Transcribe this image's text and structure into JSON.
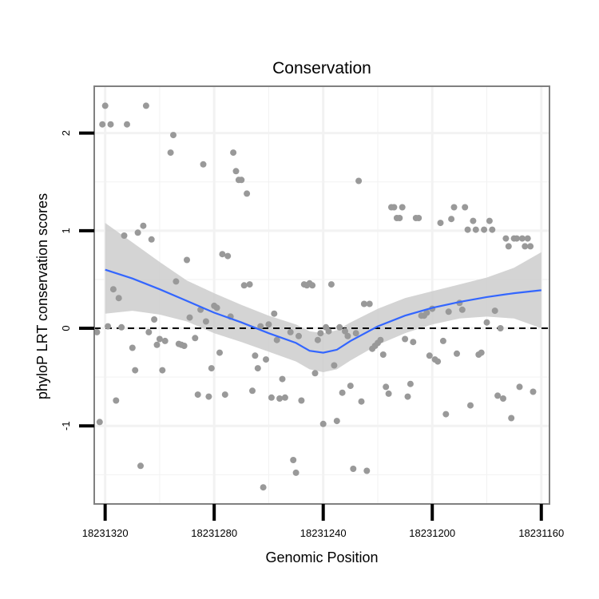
{
  "chart_data": {
    "type": "scatter",
    "title": "Conservation",
    "xlabel": "Genomic Position",
    "ylabel": "phyloP LRT conservation scores",
    "x_reversed": true,
    "xlim": [
      18231324,
      18231157
    ],
    "ylim": [
      -1.8,
      2.48
    ],
    "xticks": [
      18231320,
      18231280,
      18231240,
      18231200,
      18231160
    ],
    "xtick_labels": [
      "18231320",
      "18231280",
      "18231240",
      "18231200",
      "18231160"
    ],
    "yticks": [
      -1,
      0,
      1,
      2
    ],
    "ytick_labels": [
      "-1",
      "0",
      "1",
      "2"
    ],
    "reference_line": {
      "y": 0,
      "style": "dashed",
      "color": "#000000"
    },
    "colors": {
      "points": "#999999",
      "smooth": "#3366ff",
      "ribbon": "#cccccc",
      "grid": "#f2f2f2",
      "panel_border": "#808080"
    },
    "points": [
      [
        18231323,
        -0.04
      ],
      [
        18231322,
        -0.96
      ],
      [
        18231321,
        2.09
      ],
      [
        18231320,
        2.28
      ],
      [
        18231319,
        0.02
      ],
      [
        18231318,
        2.09
      ],
      [
        18231317,
        0.4
      ],
      [
        18231316,
        -0.74
      ],
      [
        18231315,
        0.31
      ],
      [
        18231314,
        0.01
      ],
      [
        18231313,
        0.95
      ],
      [
        18231312,
        2.09
      ],
      [
        18231310,
        -0.2
      ],
      [
        18231309,
        -0.43
      ],
      [
        18231308,
        0.98
      ],
      [
        18231307,
        -1.41
      ],
      [
        18231306,
        1.05
      ],
      [
        18231305,
        2.28
      ],
      [
        18231304,
        -0.04
      ],
      [
        18231303,
        0.91
      ],
      [
        18231302,
        0.09
      ],
      [
        18231301,
        -0.17
      ],
      [
        18231300,
        -0.11
      ],
      [
        18231299,
        -0.43
      ],
      [
        18231298,
        -0.13
      ],
      [
        18231296,
        1.8
      ],
      [
        18231295,
        1.98
      ],
      [
        18231294,
        0.48
      ],
      [
        18231293,
        -0.16
      ],
      [
        18231292,
        -0.17
      ],
      [
        18231291,
        -0.18
      ],
      [
        18231290,
        0.7
      ],
      [
        18231289,
        0.11
      ],
      [
        18231287,
        -0.1
      ],
      [
        18231286,
        -0.68
      ],
      [
        18231285,
        0.19
      ],
      [
        18231284,
        1.68
      ],
      [
        18231283,
        0.07
      ],
      [
        18231282,
        -0.7
      ],
      [
        18231281,
        -0.41
      ],
      [
        18231280,
        0.23
      ],
      [
        18231279,
        0.21
      ],
      [
        18231278,
        -0.25
      ],
      [
        18231277,
        0.76
      ],
      [
        18231276,
        -0.68
      ],
      [
        18231275,
        0.74
      ],
      [
        18231274,
        0.12
      ],
      [
        18231273,
        1.8
      ],
      [
        18231272,
        1.61
      ],
      [
        18231271,
        1.52
      ],
      [
        18231270,
        1.52
      ],
      [
        18231269,
        0.44
      ],
      [
        18231268,
        1.38
      ],
      [
        18231267,
        0.45
      ],
      [
        18231266,
        -0.64
      ],
      [
        18231265,
        -0.28
      ],
      [
        18231264,
        -0.41
      ],
      [
        18231263,
        0.02
      ],
      [
        18231262,
        -1.63
      ],
      [
        18231261,
        -0.32
      ],
      [
        18231260,
        0.04
      ],
      [
        18231259,
        -0.71
      ],
      [
        18231258,
        0.15
      ],
      [
        18231257,
        -0.12
      ],
      [
        18231256,
        -0.72
      ],
      [
        18231255,
        -0.52
      ],
      [
        18231254,
        -0.71
      ],
      [
        18231252,
        -0.04
      ],
      [
        18231251,
        -1.35
      ],
      [
        18231250,
        -1.48
      ],
      [
        18231249,
        -0.08
      ],
      [
        18231248,
        -0.74
      ],
      [
        18231247,
        0.45
      ],
      [
        18231246,
        0.44
      ],
      [
        18231245,
        0.46
      ],
      [
        18231244,
        0.44
      ],
      [
        18231243,
        -0.46
      ],
      [
        18231242,
        -0.12
      ],
      [
        18231241,
        -0.05
      ],
      [
        18231240,
        -0.98
      ],
      [
        18231239,
        0.01
      ],
      [
        18231238,
        -0.03
      ],
      [
        18231237,
        0.45
      ],
      [
        18231236,
        -0.38
      ],
      [
        18231235,
        -0.95
      ],
      [
        18231234,
        0.01
      ],
      [
        18231233,
        -0.66
      ],
      [
        18231232,
        -0.03
      ],
      [
        18231231,
        -0.08
      ],
      [
        18231230,
        -0.59
      ],
      [
        18231229,
        -1.44
      ],
      [
        18231228,
        -0.05
      ],
      [
        18231227,
        1.51
      ],
      [
        18231226,
        -0.75
      ],
      [
        18231225,
        0.25
      ],
      [
        18231224,
        -1.46
      ],
      [
        18231223,
        0.25
      ],
      [
        18231222,
        -0.21
      ],
      [
        18231221,
        -0.18
      ],
      [
        18231220,
        -0.15
      ],
      [
        18231219,
        -0.12
      ],
      [
        18231218,
        -0.27
      ],
      [
        18231217,
        -0.6
      ],
      [
        18231216,
        -0.67
      ],
      [
        18231215,
        1.24
      ],
      [
        18231214,
        1.24
      ],
      [
        18231213,
        1.13
      ],
      [
        18231212,
        1.13
      ],
      [
        18231211,
        1.24
      ],
      [
        18231210,
        -0.11
      ],
      [
        18231209,
        -0.7
      ],
      [
        18231208,
        -0.57
      ],
      [
        18231207,
        -0.14
      ],
      [
        18231206,
        1.13
      ],
      [
        18231205,
        1.13
      ],
      [
        18231204,
        0.13
      ],
      [
        18231203,
        0.13
      ],
      [
        18231202,
        0.16
      ],
      [
        18231201,
        -0.28
      ],
      [
        18231200,
        0.2
      ],
      [
        18231199,
        -0.32
      ],
      [
        18231198,
        -0.34
      ],
      [
        18231197,
        1.08
      ],
      [
        18231196,
        -0.13
      ],
      [
        18231195,
        -0.88
      ],
      [
        18231194,
        0.17
      ],
      [
        18231193,
        1.12
      ],
      [
        18231192,
        1.24
      ],
      [
        18231191,
        -0.26
      ],
      [
        18231190,
        0.26
      ],
      [
        18231189,
        0.19
      ],
      [
        18231188,
        1.24
      ],
      [
        18231187,
        1.01
      ],
      [
        18231186,
        -0.79
      ],
      [
        18231185,
        1.1
      ],
      [
        18231184,
        1.01
      ],
      [
        18231183,
        -0.27
      ],
      [
        18231182,
        -0.25
      ],
      [
        18231181,
        1.01
      ],
      [
        18231180,
        0.06
      ],
      [
        18231179,
        1.1
      ],
      [
        18231178,
        1.01
      ],
      [
        18231177,
        0.18
      ],
      [
        18231176,
        -0.69
      ],
      [
        18231175,
        0.0
      ],
      [
        18231174,
        -0.72
      ],
      [
        18231173,
        0.92
      ],
      [
        18231172,
        0.84
      ],
      [
        18231171,
        -0.92
      ],
      [
        18231170,
        0.92
      ],
      [
        18231169,
        0.92
      ],
      [
        18231168,
        -0.6
      ],
      [
        18231167,
        0.92
      ],
      [
        18231166,
        0.84
      ],
      [
        18231165,
        0.92
      ],
      [
        18231164,
        0.84
      ],
      [
        18231163,
        -0.65
      ]
    ],
    "smooth": {
      "method": "loess",
      "line": [
        [
          18231320,
          0.6
        ],
        [
          18231310,
          0.51
        ],
        [
          18231300,
          0.4
        ],
        [
          18231290,
          0.28
        ],
        [
          18231280,
          0.16
        ],
        [
          18231270,
          0.06
        ],
        [
          18231260,
          -0.05
        ],
        [
          18231250,
          -0.15
        ],
        [
          18231245,
          -0.23
        ],
        [
          18231240,
          -0.25
        ],
        [
          18231235,
          -0.22
        ],
        [
          18231230,
          -0.13
        ],
        [
          18231220,
          0.02
        ],
        [
          18231210,
          0.13
        ],
        [
          18231200,
          0.21
        ],
        [
          18231190,
          0.27
        ],
        [
          18231180,
          0.32
        ],
        [
          18231170,
          0.36
        ],
        [
          18231160,
          0.39
        ]
      ],
      "upper": [
        [
          18231320,
          1.08
        ],
        [
          18231310,
          0.88
        ],
        [
          18231300,
          0.68
        ],
        [
          18231290,
          0.49
        ],
        [
          18231280,
          0.36
        ],
        [
          18231270,
          0.24
        ],
        [
          18231260,
          0.13
        ],
        [
          18231250,
          0.04
        ],
        [
          18231245,
          -0.03
        ],
        [
          18231240,
          -0.05
        ],
        [
          18231235,
          -0.02
        ],
        [
          18231230,
          0.06
        ],
        [
          18231220,
          0.2
        ],
        [
          18231210,
          0.31
        ],
        [
          18231200,
          0.38
        ],
        [
          18231190,
          0.45
        ],
        [
          18231180,
          0.52
        ],
        [
          18231170,
          0.62
        ],
        [
          18231160,
          0.78
        ]
      ],
      "lower": [
        [
          18231320,
          0.15
        ],
        [
          18231310,
          0.18
        ],
        [
          18231300,
          0.14
        ],
        [
          18231290,
          0.07
        ],
        [
          18231280,
          -0.05
        ],
        [
          18231270,
          -0.14
        ],
        [
          18231260,
          -0.24
        ],
        [
          18231250,
          -0.34
        ],
        [
          18231245,
          -0.42
        ],
        [
          18231240,
          -0.45
        ],
        [
          18231235,
          -0.42
        ],
        [
          18231230,
          -0.33
        ],
        [
          18231220,
          -0.17
        ],
        [
          18231210,
          -0.05
        ],
        [
          18231200,
          0.04
        ],
        [
          18231190,
          0.1
        ],
        [
          18231180,
          0.12
        ],
        [
          18231170,
          0.1
        ],
        [
          18231160,
          0.0
        ]
      ]
    }
  }
}
